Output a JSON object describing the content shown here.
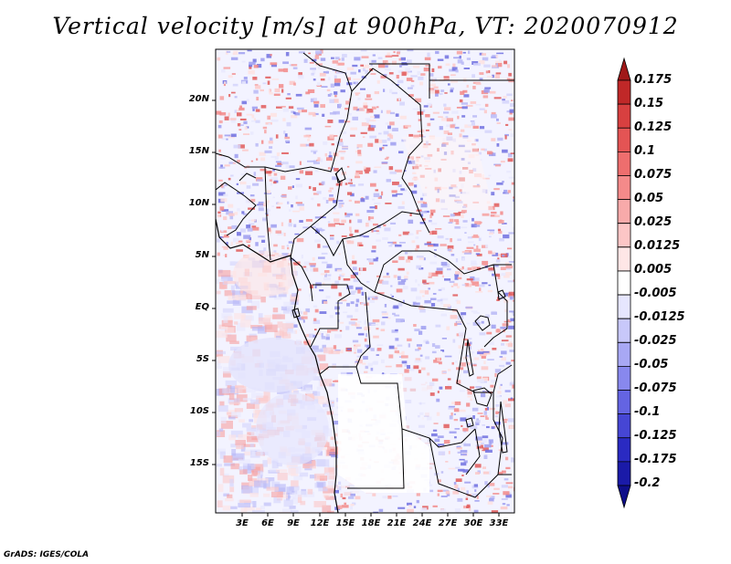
{
  "title": "Vertical velocity [m/s] at 900hPa, VT: 2020070912",
  "credit": "GrADS: IGES/COLA",
  "map": {
    "lat_labels": [
      "20N",
      "15N",
      "10N",
      "5N",
      "EQ",
      "5S",
      "10S",
      "15S"
    ],
    "lon_labels": [
      "3E",
      "6E",
      "9E",
      "12E",
      "15E",
      "18E",
      "21E",
      "24E",
      "27E",
      "30E",
      "33E"
    ]
  },
  "colorbar": {
    "labels": [
      "0.175",
      "0.15",
      "0.125",
      "0.1",
      "0.075",
      "0.05",
      "0.025",
      "0.0125",
      "0.005",
      "-0.005",
      "-0.0125",
      "-0.025",
      "-0.05",
      "-0.075",
      "-0.1",
      "-0.125",
      "-0.175",
      "-0.2"
    ],
    "colors": [
      "#a01818",
      "#c02828",
      "#d84040",
      "#e45454",
      "#ee6e6e",
      "#f48a8a",
      "#f8aaaa",
      "#fcc6c6",
      "#fee6e6",
      "#ffffff",
      "#e6e6fe",
      "#c8c8fa",
      "#a8a8f4",
      "#8888ee",
      "#6464e2",
      "#4646d4",
      "#2a2ac2",
      "#1a1aa8",
      "#0e0e8a"
    ]
  }
}
